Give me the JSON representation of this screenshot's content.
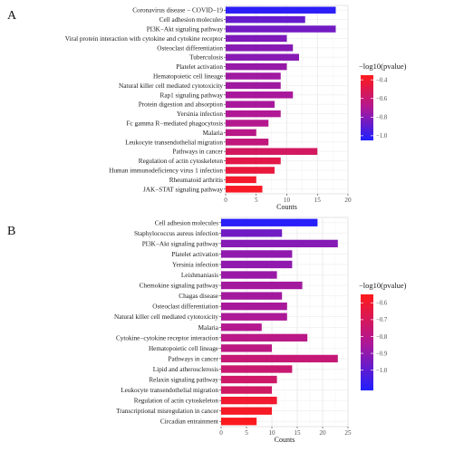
{
  "chart_data": [
    {
      "type": "bar",
      "orientation": "horizontal",
      "panel_label": "A",
      "xlabel": "Counts",
      "xlim": [
        0,
        20
      ],
      "xticks": [
        0,
        5,
        10,
        15,
        20
      ],
      "grid": true,
      "legend_position": "right",
      "legend_title": "−log10(pvalue)",
      "color_scale": {
        "min": -1.05,
        "max": -0.35,
        "low_color": "#1f1fff",
        "high_color": "#ff1a1a"
      },
      "legend_ticks": [
        -0.4,
        -0.6,
        -0.8,
        -1.0
      ],
      "categories": [
        "Coronavirus disease − COVID−19",
        "Cell adhesion molecules",
        "PI3K−Akt signaling pathway",
        "Viral protein interaction with cytokine and cytokine receptor",
        "Osteoclast differentiation",
        "Tuberculosis",
        "Platelet activation",
        "Hematopoietic cell lineage",
        "Natural killer cell mediated cytotoxicity",
        "Rap1 signaling pathway",
        "Protein digestion and absorption",
        "Yersinia infection",
        "Fc gamma R−mediated phagocytosis",
        "Malaria",
        "Leukocyte transendothelial migration",
        "Pathways in cancer",
        "Regulation of actin cytoskeleton",
        "Human immunodeficiency virus 1 infection",
        "Rheumatoid arthritis",
        "JAK−STAT signaling pathway"
      ],
      "values": [
        18,
        13,
        18,
        10,
        11,
        12,
        10,
        9,
        9,
        11,
        8,
        9,
        7,
        5,
        7,
        15,
        9,
        8,
        5,
        6
      ],
      "pvalue_color": [
        -1.02,
        -0.88,
        -0.85,
        -0.82,
        -0.8,
        -0.8,
        -0.76,
        -0.74,
        -0.74,
        -0.72,
        -0.72,
        -0.7,
        -0.68,
        -0.66,
        -0.63,
        -0.55,
        -0.48,
        -0.45,
        -0.4,
        -0.38
      ]
    },
    {
      "type": "bar",
      "orientation": "horizontal",
      "panel_label": "B",
      "xlabel": "Counts",
      "xlim": [
        0,
        25
      ],
      "xticks": [
        0,
        5,
        10,
        15,
        20,
        25
      ],
      "grid": true,
      "legend_position": "right",
      "legend_title": "−log10(pvalue)",
      "color_scale": {
        "min": -1.12,
        "max": -0.55,
        "low_color": "#1f1fff",
        "high_color": "#ff1a1a"
      },
      "legend_ticks": [
        -0.6,
        -0.7,
        -0.8,
        -0.9,
        -1.0
      ],
      "categories": [
        "Cell adhesion molecules",
        "Staphylococcus aureus infection",
        "PI3K−Akt signaling pathway",
        "Platelet activation",
        "Yersinia infection",
        "Leishmaniasis",
        "Chemokine signaling pathway",
        "Chagas disease",
        "Osteoclast differentiation",
        "Natural killer cell mediated cytotoxicity",
        "Malaria",
        "Cytokine−cytokine receptor interaction",
        "Hematopoietic cell lineage",
        "Pathways in cancer",
        "Lipid and atherosclerosis",
        "Relaxin signaling pathway",
        "Leukocyte transendothelial migration",
        "Regulation of actin cytoskeleton",
        "Transcriptional misregulation in cancer",
        "Circadian entrainment"
      ],
      "values": [
        19,
        12,
        23,
        14,
        14,
        11,
        16,
        12,
        13,
        13,
        8,
        17,
        10,
        23,
        14,
        11,
        10,
        11,
        10,
        7
      ],
      "pvalue_color": [
        -1.1,
        -0.96,
        -0.92,
        -0.9,
        -0.9,
        -0.88,
        -0.86,
        -0.86,
        -0.85,
        -0.84,
        -0.82,
        -0.8,
        -0.79,
        -0.76,
        -0.75,
        -0.73,
        -0.72,
        -0.6,
        -0.58,
        -0.56
      ]
    }
  ]
}
